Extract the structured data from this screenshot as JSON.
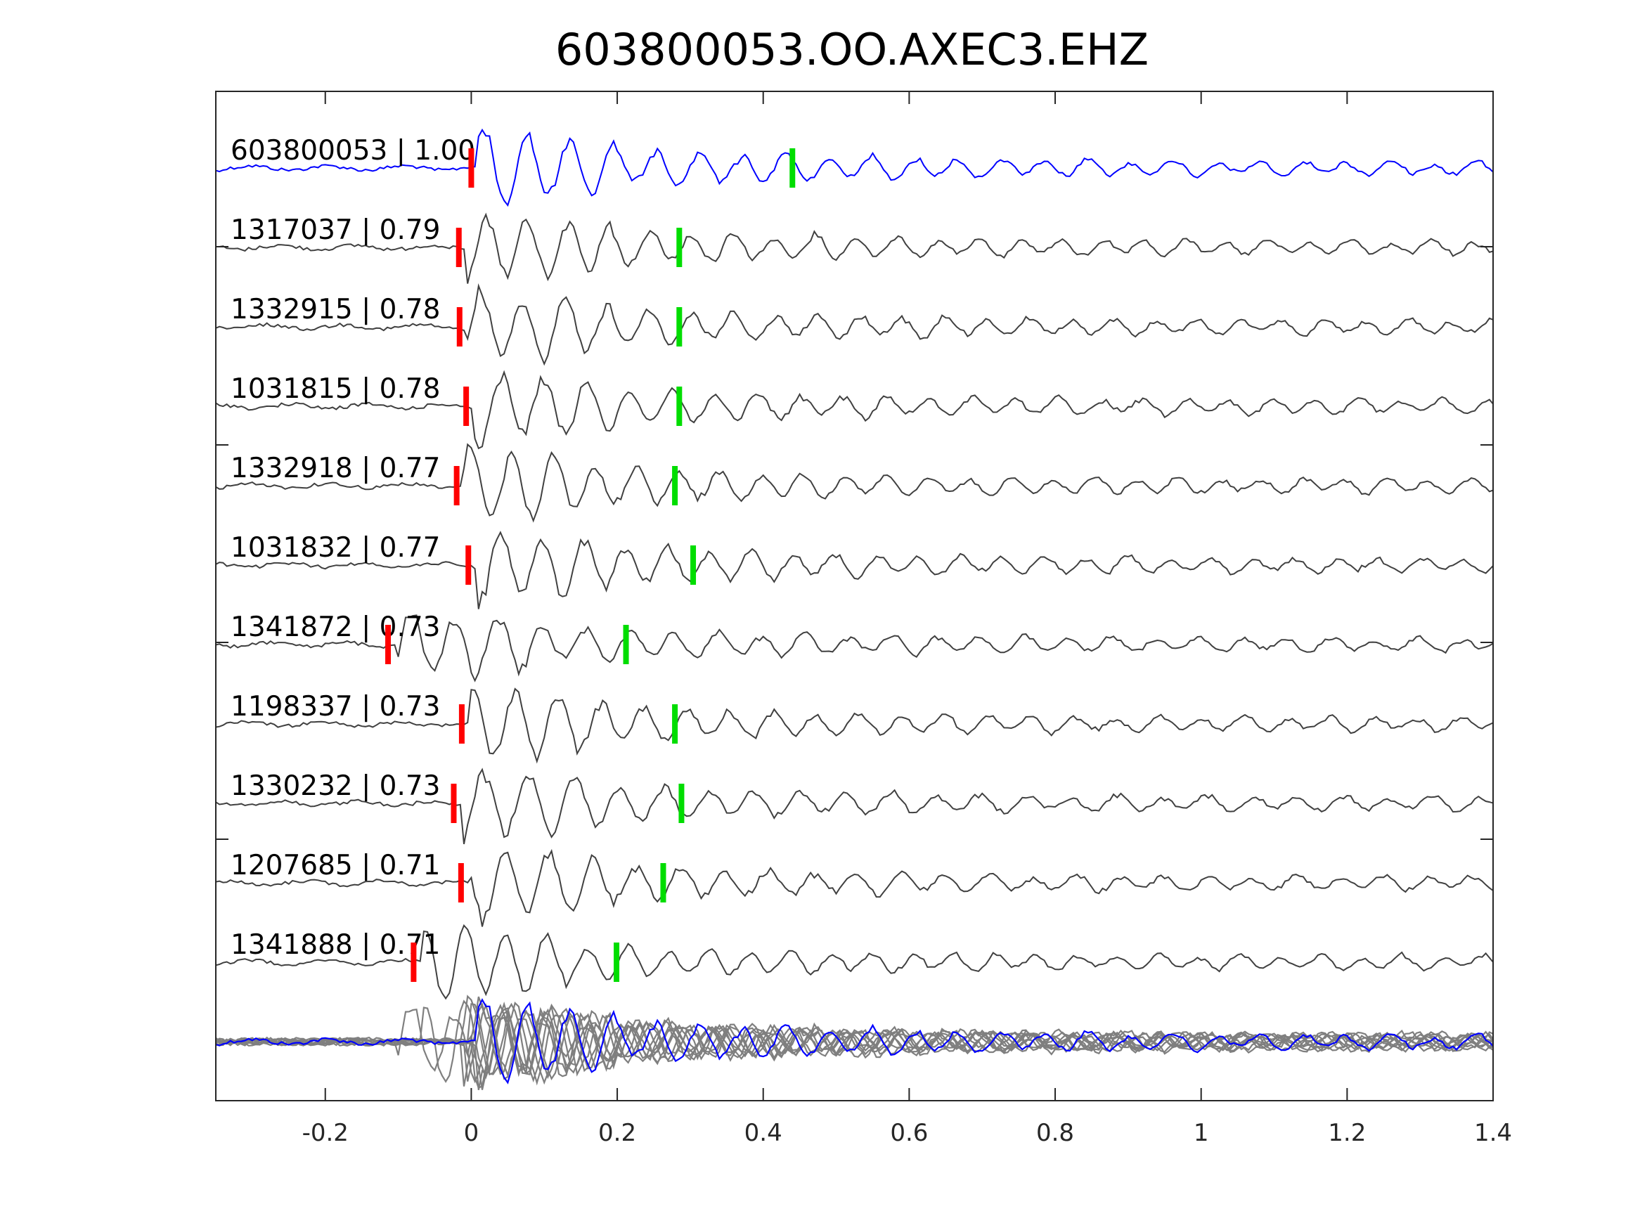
{
  "chart_data": {
    "type": "line",
    "title": "603800053.OO.AXEC3.EHZ",
    "xlabel": "",
    "ylabel": "",
    "xlim": [
      -0.35,
      1.4
    ],
    "xticks": [
      -0.2,
      0,
      0.2,
      0.4,
      0.6,
      0.8,
      1,
      1.2,
      1.4
    ],
    "xtick_labels": [
      "-0.2",
      "0",
      "0.2",
      "0.4",
      "0.6",
      "0.8",
      "1",
      "1.2",
      "1.4"
    ],
    "grid": false,
    "colors": {
      "template": "#0000ff",
      "match": "#404040",
      "stack": "#7f7f7f",
      "p_pick": "#ff0000",
      "s_pick": "#00dd00"
    },
    "traces": [
      {
        "label": "603800053 | 1.00",
        "p_pick": 0.0,
        "s_pick": 0.44,
        "template": true
      },
      {
        "label": "1317037 | 0.79",
        "p_pick": -0.017,
        "s_pick": 0.285
      },
      {
        "label": "1332915 | 0.78",
        "p_pick": -0.016,
        "s_pick": 0.285
      },
      {
        "label": "1031815 | 0.78",
        "p_pick": -0.007,
        "s_pick": 0.285
      },
      {
        "label": "1332918 | 0.77",
        "p_pick": -0.02,
        "s_pick": 0.279
      },
      {
        "label": "1031832 | 0.77",
        "p_pick": -0.004,
        "s_pick": 0.304
      },
      {
        "label": "1341872 | 0.73",
        "p_pick": -0.114,
        "s_pick": 0.212
      },
      {
        "label": "1198337 | 0.73",
        "p_pick": -0.013,
        "s_pick": 0.279
      },
      {
        "label": "1330232 | 0.73",
        "p_pick": -0.024,
        "s_pick": 0.288
      },
      {
        "label": "1207685 | 0.71",
        "p_pick": -0.014,
        "s_pick": 0.263
      },
      {
        "label": "1341888 | 0.71",
        "p_pick": -0.079,
        "s_pick": 0.199
      }
    ]
  }
}
